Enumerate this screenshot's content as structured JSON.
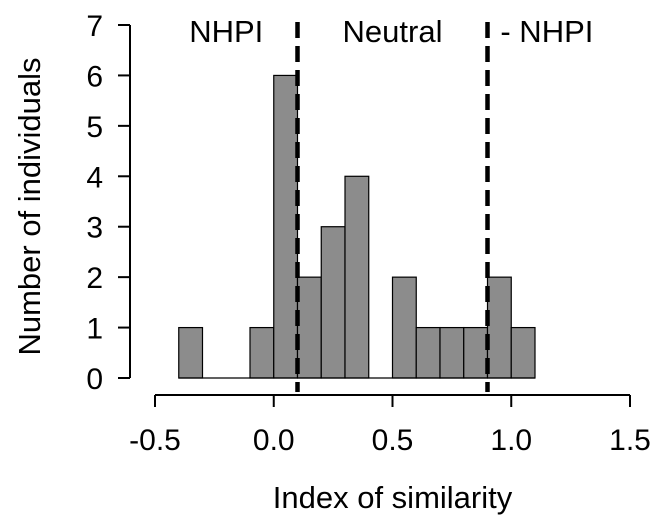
{
  "chart_data": {
    "type": "bar",
    "xlabel": "Index of similarity",
    "ylabel": "Number of individuals",
    "x_ticks": [
      "-0.5",
      "0.0",
      "0.5",
      "1.0",
      "1.5"
    ],
    "y_ticks": [
      "0",
      "1",
      "2",
      "3",
      "4",
      "5",
      "6",
      "7"
    ],
    "xlim": [
      -0.5,
      1.5
    ],
    "ylim": [
      0,
      7
    ],
    "bin_width": 0.1,
    "bin_starts": [
      -0.4,
      -0.3,
      -0.2,
      -0.1,
      0.0,
      0.1,
      0.2,
      0.3,
      0.4,
      0.5,
      0.6,
      0.7,
      0.8,
      0.9,
      1.0
    ],
    "values": [
      1,
      0,
      0,
      1,
      6,
      2,
      3,
      4,
      0,
      2,
      1,
      1,
      1,
      2,
      1
    ],
    "thresholds": [
      0.1,
      0.9
    ],
    "regions": [
      {
        "label": "NHPI",
        "x": -0.2
      },
      {
        "label": "Neutral",
        "x": 0.5
      },
      {
        "label": "- NHPI",
        "x": 1.15
      }
    ],
    "colors": {
      "bar_fill": "#8c8c8c",
      "bar_stroke": "#000000",
      "threshold_line": "#000000"
    },
    "grid": false
  }
}
